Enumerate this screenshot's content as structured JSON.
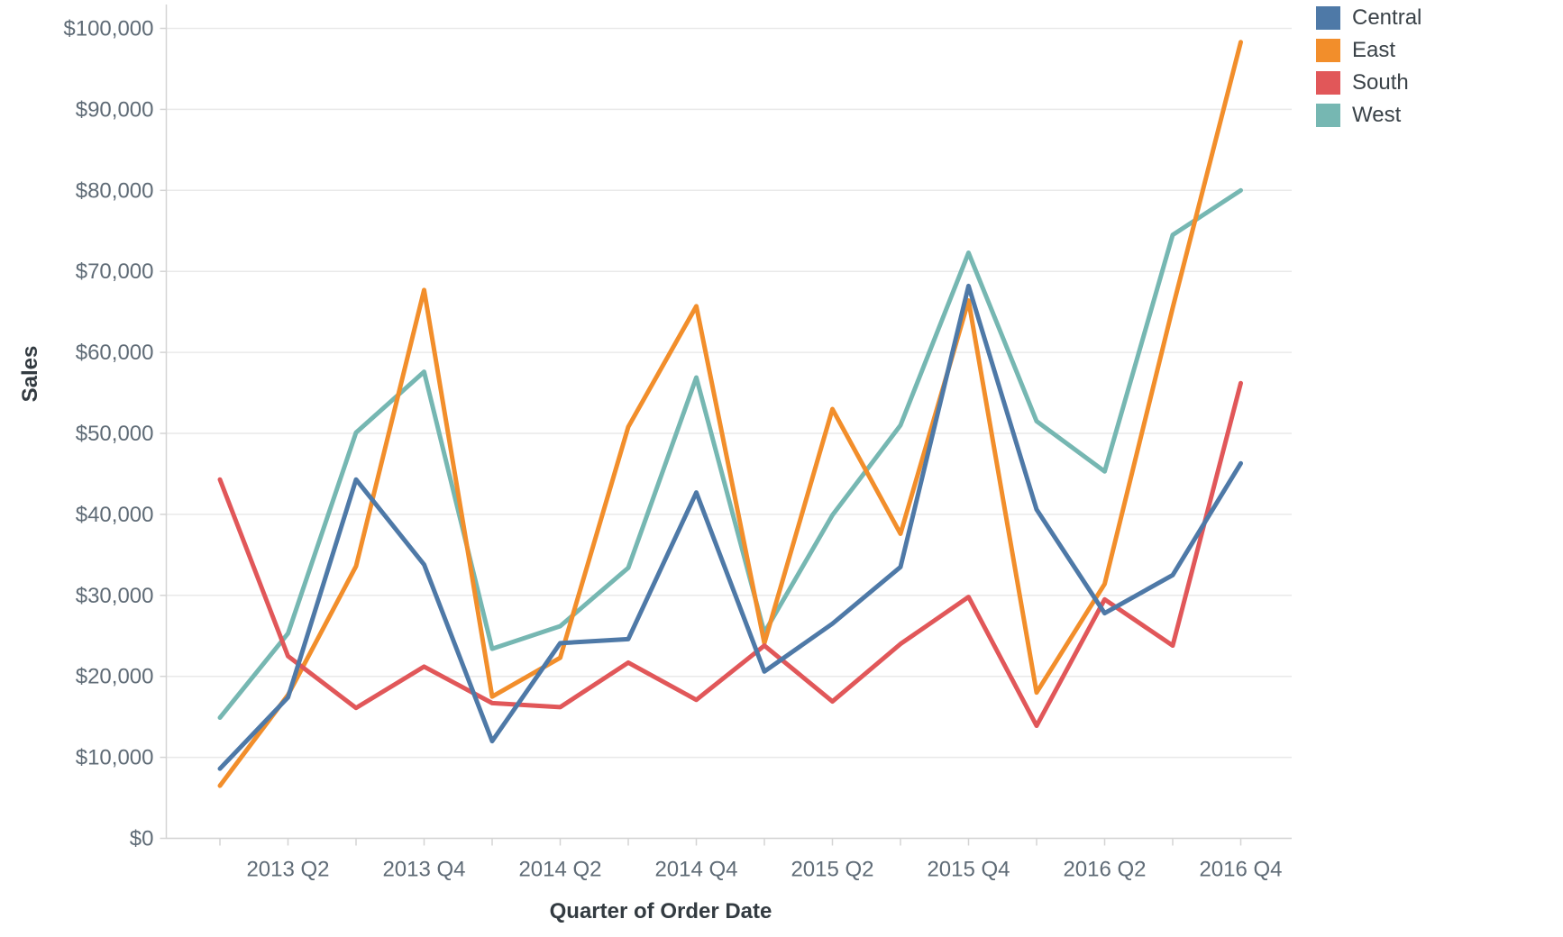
{
  "chart_data": {
    "type": "line",
    "title": "",
    "xlabel": "Quarter of Order Date",
    "ylabel": "Sales",
    "categories": [
      "2013 Q1",
      "2013 Q2",
      "2013 Q3",
      "2013 Q4",
      "2014 Q1",
      "2014 Q2",
      "2014 Q3",
      "2014 Q4",
      "2015 Q1",
      "2015 Q2",
      "2015 Q3",
      "2015 Q4",
      "2016 Q1",
      "2016 Q2",
      "2016 Q3",
      "2016 Q4"
    ],
    "x_tick_labels": [
      "2013 Q2",
      "2013 Q4",
      "2014 Q2",
      "2014 Q4",
      "2015 Q2",
      "2015 Q4",
      "2016 Q2",
      "2016 Q4"
    ],
    "ylim": [
      0,
      100000
    ],
    "y_tick_step": 10000,
    "y_tick_prefix": "$",
    "grid": true,
    "legend_position": "top-right",
    "series": [
      {
        "name": "Central",
        "color": "#4e79a7",
        "values": [
          8600,
          17400,
          44300,
          33800,
          12000,
          24100,
          24600,
          42700,
          20600,
          26500,
          33500,
          68200,
          40600,
          27800,
          32500,
          46300
        ]
      },
      {
        "name": "East",
        "color": "#f28e2b",
        "values": [
          6500,
          17700,
          33600,
          67700,
          17500,
          22300,
          50800,
          65700,
          24100,
          53000,
          37600,
          66400,
          18000,
          31400,
          65500,
          98300
        ]
      },
      {
        "name": "South",
        "color": "#e15759",
        "values": [
          44300,
          22500,
          16100,
          21200,
          16700,
          16200,
          21700,
          17100,
          23800,
          16900,
          24000,
          29800,
          13900,
          29500,
          23800,
          56200
        ]
      },
      {
        "name": "West",
        "color": "#76b7b2",
        "values": [
          14900,
          25300,
          50100,
          57600,
          23400,
          26200,
          33400,
          56900,
          25400,
          39900,
          51000,
          72300,
          51500,
          45300,
          74500,
          80000
        ]
      }
    ]
  },
  "legend": {
    "items": [
      {
        "label": "Central",
        "color": "#4e79a7"
      },
      {
        "label": "East",
        "color": "#f28e2b"
      },
      {
        "label": "South",
        "color": "#e15759"
      },
      {
        "label": "West",
        "color": "#76b7b2"
      }
    ]
  }
}
